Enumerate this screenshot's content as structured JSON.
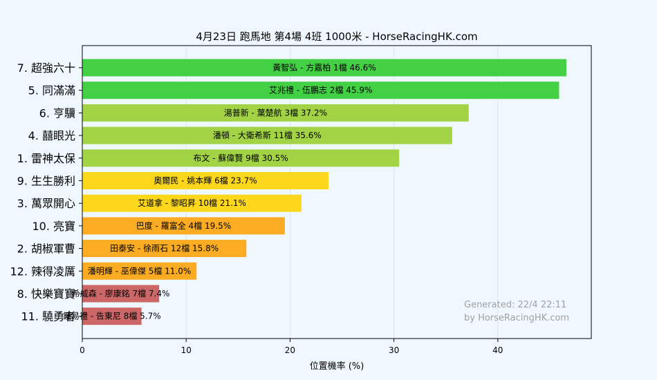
{
  "chart_data": {
    "type": "bar",
    "orientation": "horizontal",
    "title": "4月23日  跑馬地  第4場  4班  1000米 - HorseRacingHK.com",
    "xlabel": "位置機率 (%)",
    "ylabel": "",
    "xlim": [
      0,
      49
    ],
    "xticks": [
      "0",
      "10",
      "20",
      "30",
      "40"
    ],
    "grid": "vertical",
    "categories": [
      "7. 超強六十",
      "5. 同滿滿",
      "6. 亨驥",
      "4. 囍眼光",
      "1. 雷神太保",
      "9. 生生勝利",
      "3. 萬眾開心",
      "10. 亮寶",
      "2. 胡椒軍曹",
      "12. 辣得凌厲",
      "8. 快樂寶寶",
      "11. 驍勇者"
    ],
    "values": [
      46.6,
      45.9,
      37.2,
      35.6,
      30.5,
      23.7,
      21.1,
      19.5,
      15.8,
      11.0,
      7.4,
      5.7
    ],
    "bar_labels": [
      "黃智弘 - 方嘉柏 1檔  46.6%",
      "艾兆禮 - 伍鵬志 2檔  45.9%",
      "湯普新 - 葉楚航 3檔  37.2%",
      "潘頓 - 大衛希斯 11檔  35.6%",
      "布文 - 蘇偉賢 9檔  30.5%",
      "奧爾民 - 姚本輝 6檔  23.7%",
      "艾道拿 - 黎昭昇 10檔  21.1%",
      "巴度 - 羅富全 4檔  19.5%",
      "田泰安 - 徐雨石 12檔  15.8%",
      "潘明輝 - 巫偉傑 5檔  11.0%",
      "希威森 - 廖康銘 7檔  7.4%",
      "鍾易禮 - 告東尼 8檔  5.7%"
    ],
    "colors": [
      "#44d044",
      "#44d044",
      "#a2d344",
      "#a2d344",
      "#a2d344",
      "#fdd71c",
      "#fdd71c",
      "#fcac22",
      "#fcac22",
      "#fcac22",
      "#cd6767",
      "#cd6767"
    ],
    "annotation": [
      "Generated: 22/4 22:11",
      "by HorseRacingHK.com"
    ]
  }
}
